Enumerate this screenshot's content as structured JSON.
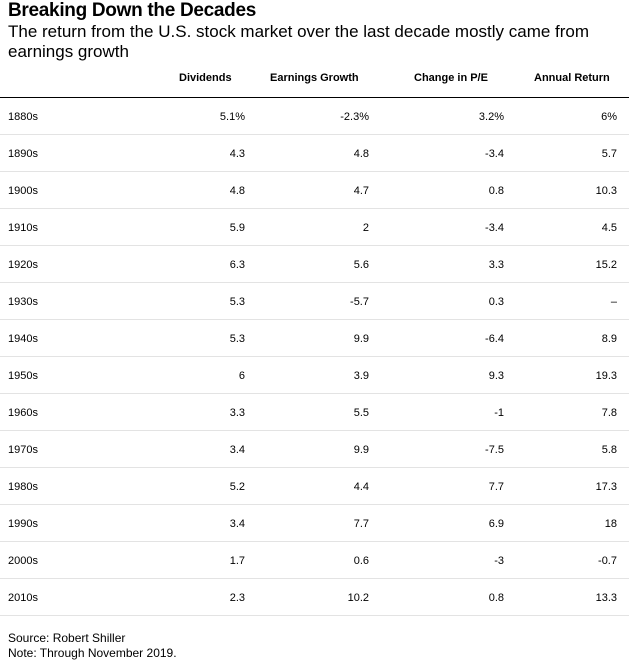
{
  "chart_data": {
    "type": "table",
    "title": "Breaking Down the Decades",
    "subtitle": "The return from the U.S. stock market over the last decade mostly came from earnings growth",
    "columns": [
      "Dividends",
      "Earnings Growth",
      "Change in P/E",
      "Annual Return"
    ],
    "rows": [
      {
        "decade": "1880s",
        "values": [
          "5.1%",
          "-2.3%",
          "3.2%",
          "6%"
        ]
      },
      {
        "decade": "1890s",
        "values": [
          "4.3",
          "4.8",
          "-3.4",
          "5.7"
        ]
      },
      {
        "decade": "1900s",
        "values": [
          "4.8",
          "4.7",
          "0.8",
          "10.3"
        ]
      },
      {
        "decade": "1910s",
        "values": [
          "5.9",
          "2",
          "-3.4",
          "4.5"
        ]
      },
      {
        "decade": "1920s",
        "values": [
          "6.3",
          "5.6",
          "3.3",
          "15.2"
        ]
      },
      {
        "decade": "1930s",
        "values": [
          "5.3",
          "-5.7",
          "0.3",
          "–"
        ]
      },
      {
        "decade": "1940s",
        "values": [
          "5.3",
          "9.9",
          "-6.4",
          "8.9"
        ]
      },
      {
        "decade": "1950s",
        "values": [
          "6",
          "3.9",
          "9.3",
          "19.3"
        ]
      },
      {
        "decade": "1960s",
        "values": [
          "3.3",
          "5.5",
          "-1",
          "7.8"
        ]
      },
      {
        "decade": "1970s",
        "values": [
          "3.4",
          "9.9",
          "-7.5",
          "5.8"
        ]
      },
      {
        "decade": "1980s",
        "values": [
          "5.2",
          "4.4",
          "7.7",
          "17.3"
        ]
      },
      {
        "decade": "1990s",
        "values": [
          "3.4",
          "7.7",
          "6.9",
          "18"
        ]
      },
      {
        "decade": "2000s",
        "values": [
          "1.7",
          "0.6",
          "-3",
          "-0.7"
        ]
      },
      {
        "decade": "2010s",
        "values": [
          "2.3",
          "10.2",
          "0.8",
          "13.3"
        ]
      }
    ],
    "source": "Source: Robert Shiller",
    "note": "Note: Through November 2019."
  }
}
